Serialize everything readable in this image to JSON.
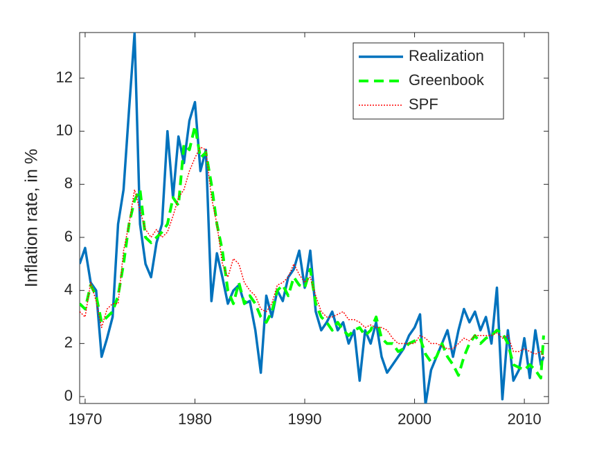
{
  "chart_data": {
    "type": "line",
    "y_label": "Inflation rate, in %",
    "x": [
      1969.5,
      1970,
      1970.5,
      1971,
      1971.5,
      1972,
      1972.5,
      1973,
      1973.5,
      1974,
      1974.5,
      1975,
      1975.5,
      1976,
      1976.5,
      1977,
      1977.5,
      1978,
      1978.5,
      1979,
      1979.5,
      1980,
      1980.5,
      1981,
      1981.5,
      1982,
      1982.5,
      1983,
      1983.5,
      1984,
      1984.5,
      1985,
      1985.5,
      1986,
      1986.5,
      1987,
      1987.5,
      1988,
      1988.5,
      1989,
      1989.5,
      1990,
      1990.5,
      1991,
      1991.5,
      1992,
      1992.5,
      1993,
      1993.5,
      1994,
      1994.5,
      1995,
      1995.5,
      1996,
      1996.5,
      1997,
      1997.5,
      1998,
      1998.5,
      1999,
      1999.5,
      2000,
      2000.5,
      2001,
      2001.5,
      2002,
      2002.5,
      2003,
      2003.5,
      2004,
      2004.5,
      2005,
      2005.5,
      2006,
      2006.5,
      2007,
      2007.5,
      2008,
      2008.5,
      2009,
      2009.5,
      2010,
      2010.5,
      2011,
      2011.5,
      2011.75
    ],
    "series": [
      {
        "name": "Realization",
        "color": "#0072bd",
        "style": "solid",
        "values": [
          5.0,
          5.6,
          4.3,
          4.0,
          1.5,
          2.2,
          3.0,
          6.5,
          7.8,
          10.8,
          13.7,
          6.5,
          5.0,
          4.5,
          5.8,
          6.5,
          10.0,
          7.5,
          9.8,
          8.8,
          10.4,
          11.1,
          8.5,
          9.3,
          3.6,
          5.4,
          4.5,
          3.5,
          4.0,
          4.2,
          3.5,
          3.6,
          2.5,
          0.9,
          3.8,
          3.0,
          4.0,
          3.6,
          4.5,
          4.8,
          5.5,
          4.1,
          5.5,
          3.2,
          2.5,
          2.8,
          3.2,
          2.5,
          2.8,
          2.0,
          2.5,
          0.6,
          2.5,
          2.0,
          2.8,
          1.5,
          0.9,
          1.2,
          1.5,
          1.8,
          2.3,
          2.6,
          3.1,
          -0.3,
          1.0,
          1.5,
          2.0,
          2.5,
          1.5,
          2.5,
          3.3,
          2.8,
          3.2,
          2.5,
          3.0,
          2.0,
          4.1,
          -0.1,
          2.5,
          0.6,
          1.0,
          2.2,
          0.7,
          2.5,
          1.2,
          1.5
        ]
      },
      {
        "name": "Greenbook",
        "color": "#00ff00",
        "style": "dashed",
        "values": [
          3.5,
          3.3,
          4.2,
          3.8,
          2.8,
          3.0,
          3.2,
          3.8,
          5.0,
          6.5,
          7.4,
          7.8,
          6.0,
          5.8,
          6.0,
          6.2,
          6.5,
          7.5,
          7.2,
          9.5,
          9.3,
          10.2,
          9.0,
          9.2,
          8.0,
          6.5,
          5.5,
          4.0,
          3.5,
          4.3,
          3.5,
          3.8,
          3.5,
          3.0,
          2.8,
          3.2,
          4.0,
          4.2,
          3.8,
          4.5,
          4.2,
          4.1,
          4.8,
          3.5,
          3.0,
          2.8,
          2.5,
          2.8,
          2.5,
          2.3,
          2.5,
          2.6,
          2.3,
          2.5,
          3.0,
          2.2,
          2.0,
          2.0,
          1.7,
          1.8,
          2.0,
          2.1,
          2.2,
          1.6,
          1.3,
          1.5,
          2.0,
          1.5,
          1.2,
          0.8,
          1.5,
          2.0,
          2.3,
          2.0,
          2.2,
          2.3,
          2.5,
          2.4,
          2.0,
          1.2,
          1.1,
          1.0,
          1.2,
          1.0,
          0.7,
          2.3
        ]
      },
      {
        "name": "SPF",
        "color": "#ff0000",
        "style": "dotted",
        "values": [
          3.2,
          3.0,
          4.3,
          3.6,
          2.6,
          3.3,
          3.5,
          3.5,
          5.5,
          6.5,
          7.8,
          7.0,
          6.3,
          6.0,
          6.3,
          6.0,
          6.2,
          6.8,
          7.5,
          7.8,
          8.5,
          9.0,
          9.4,
          9.3,
          7.5,
          6.5,
          5.0,
          4.5,
          5.2,
          5.0,
          4.3,
          4.0,
          3.8,
          3.3,
          3.2,
          3.5,
          4.2,
          4.3,
          4.5,
          5.0,
          4.6,
          4.3,
          4.5,
          3.8,
          3.2,
          3.0,
          3.0,
          3.1,
          3.2,
          2.9,
          2.9,
          2.8,
          2.6,
          2.7,
          2.6,
          2.6,
          2.5,
          2.2,
          2.0,
          2.0,
          2.0,
          2.0,
          2.3,
          2.2,
          2.0,
          2.0,
          1.9,
          1.8,
          1.8,
          2.0,
          2.2,
          2.1,
          2.3,
          2.3,
          2.3,
          2.3,
          2.4,
          2.2,
          2.3,
          1.7,
          1.7,
          1.8,
          1.7,
          1.6,
          1.7,
          1.5
        ]
      }
    ],
    "xlim": [
      1969.5,
      2012.2
    ],
    "xticks": [
      1970,
      1980,
      1990,
      2000,
      2010
    ],
    "ylim": [
      -0.26,
      13.72
    ],
    "yticks": [
      0,
      2,
      4,
      6,
      8,
      10,
      12
    ],
    "grid": false,
    "legend": "upper right"
  }
}
